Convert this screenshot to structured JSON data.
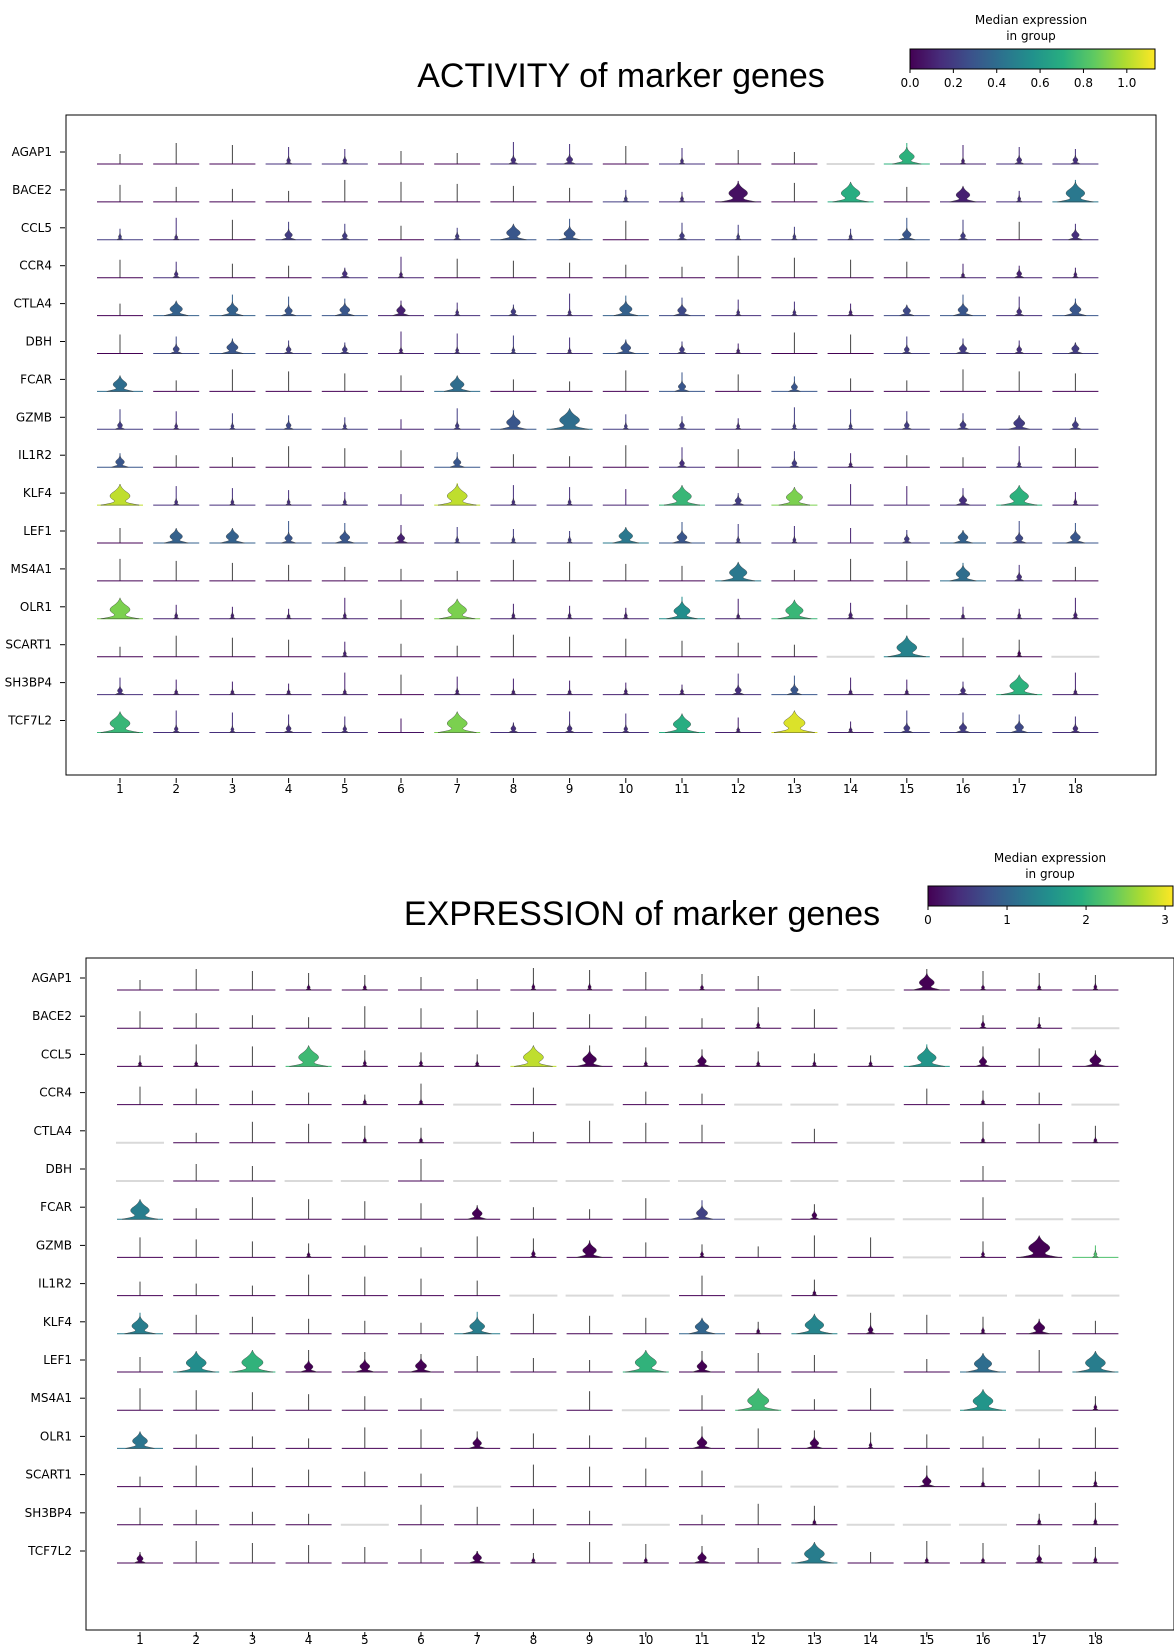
{
  "chart_data": [
    {
      "type": "violin",
      "title": "ACTIVITY of marker genes",
      "colorbar": {
        "label_line1": "Median expression",
        "label_line2": "in group",
        "min": 0.0,
        "max": 1.13,
        "ticks": [
          "0.0",
          "0.2",
          "0.4",
          "0.6",
          "0.8",
          "1.0"
        ],
        "tick_values": [
          0,
          0.2,
          0.4,
          0.6,
          0.8,
          1.0
        ]
      },
      "groups": [
        "1",
        "2",
        "3",
        "4",
        "5",
        "6",
        "7",
        "8",
        "9",
        "10",
        "11",
        "12",
        "13",
        "14",
        "15",
        "16",
        "17",
        "18"
      ],
      "genes": [
        "AGAP1",
        "BACE2",
        "CCL5",
        "CCR4",
        "CTLA4",
        "DBH",
        "FCAR",
        "GZMB",
        "IL1R2",
        "KLF4",
        "LEF1",
        "MS4A1",
        "OLR1",
        "SCART1",
        "SH3BP4",
        "TCF7L2"
      ],
      "median": [
        [
          0,
          0,
          0,
          0.15,
          0.15,
          0,
          0,
          0.15,
          0.15,
          0,
          0.15,
          0,
          0,
          0,
          0.72,
          0.1,
          0.15,
          0.15
        ],
        [
          0,
          0,
          0,
          0,
          0,
          0,
          0,
          0,
          0,
          0.2,
          0.15,
          0.05,
          0,
          0.7,
          0,
          0.1,
          0.15,
          0.45
        ],
        [
          0.2,
          0.15,
          0,
          0.2,
          0.2,
          0,
          0.2,
          0.3,
          0.3,
          0,
          0.2,
          0.2,
          0.2,
          0.2,
          0.3,
          0.2,
          0,
          0.15
        ],
        [
          0,
          0.15,
          0,
          0,
          0.15,
          0.1,
          0,
          0,
          0,
          0,
          0,
          0,
          0,
          0,
          0,
          0.1,
          0.1,
          0.1
        ],
        [
          0,
          0.35,
          0.35,
          0.3,
          0.3,
          0.1,
          0.15,
          0.2,
          0.15,
          0.35,
          0.25,
          0.15,
          0.15,
          0.1,
          0.25,
          0.3,
          0.15,
          0.3
        ],
        [
          0,
          0.25,
          0.3,
          0.2,
          0.2,
          0.1,
          0.15,
          0.2,
          0.15,
          0.3,
          0.2,
          0.1,
          0,
          0,
          0.2,
          0.2,
          0.15,
          0.2
        ],
        [
          0.4,
          0,
          0,
          0,
          0,
          0,
          0.4,
          0,
          0,
          0,
          0.3,
          0,
          0.3,
          0,
          0,
          0,
          0,
          0
        ],
        [
          0.2,
          0.15,
          0.2,
          0.25,
          0.2,
          0.1,
          0.2,
          0.3,
          0.4,
          0.2,
          0.2,
          0.15,
          0.2,
          0.2,
          0.2,
          0.2,
          0.2,
          0.2
        ],
        [
          0.3,
          0,
          0,
          0,
          0,
          0,
          0.3,
          0,
          0,
          0,
          0.15,
          0,
          0.2,
          0.1,
          0,
          0,
          0.15,
          0
        ],
        [
          1.02,
          0.15,
          0.15,
          0.15,
          0.15,
          0.1,
          1.02,
          0.15,
          0.15,
          0.1,
          0.75,
          0.2,
          0.9,
          0.1,
          0.1,
          0.15,
          0.72,
          0.1
        ],
        [
          0,
          0.35,
          0.35,
          0.3,
          0.3,
          0.1,
          0.2,
          0.2,
          0.2,
          0.45,
          0.3,
          0.2,
          0.15,
          0.1,
          0.2,
          0.35,
          0.25,
          0.3
        ],
        [
          0,
          0,
          0,
          0,
          0,
          0,
          0,
          0,
          0,
          0,
          0,
          0.45,
          0,
          0,
          0,
          0.4,
          0.15,
          0
        ],
        [
          0.9,
          0.1,
          0.1,
          0.1,
          0.1,
          0,
          0.9,
          0.1,
          0.1,
          0.1,
          0.55,
          0.1,
          0.75,
          0.1,
          0,
          0.1,
          0.1,
          0.1
        ],
        [
          0,
          0,
          0,
          0,
          0.1,
          0,
          0,
          0,
          0,
          0,
          0,
          0,
          0,
          0,
          0.5,
          0,
          0,
          0
        ],
        [
          0.15,
          0.1,
          0.1,
          0.1,
          0.1,
          0,
          0.1,
          0.1,
          0.1,
          0.1,
          0.1,
          0.15,
          0.3,
          0.1,
          0.1,
          0.15,
          0.72,
          0.1
        ],
        [
          0.75,
          0.15,
          0.15,
          0.15,
          0.15,
          0.05,
          0.9,
          0.15,
          0.15,
          0.15,
          0.7,
          0.1,
          1.07,
          0.1,
          0.2,
          0.2,
          0.25,
          0.15
        ]
      ],
      "width": [
        [
          0,
          0,
          0,
          0.15,
          0.15,
          0,
          0,
          0.2,
          0.25,
          0,
          0.1,
          0,
          0,
          -1,
          0.6,
          0.1,
          0.2,
          0.2
        ],
        [
          0,
          0,
          0,
          0,
          0,
          0,
          0,
          0,
          0,
          0.1,
          0.1,
          0.75,
          0,
          0.75,
          0,
          0.55,
          0.1,
          0.75
        ],
        [
          0.1,
          0.05,
          0,
          0.3,
          0.2,
          0,
          0.15,
          0.55,
          0.45,
          0,
          0.2,
          0.1,
          0.1,
          0.1,
          0.35,
          0.2,
          0,
          0.3
        ],
        [
          0,
          0.15,
          0,
          0,
          0.2,
          0.1,
          0,
          0,
          0,
          0,
          0,
          0,
          0,
          0,
          0,
          0.05,
          0.2,
          0.1
        ],
        [
          0,
          0.5,
          0.45,
          0.3,
          0.4,
          0.35,
          0.1,
          0.2,
          0.1,
          0.5,
          0.35,
          0.1,
          0.1,
          0.1,
          0.3,
          0.4,
          0.2,
          0.45
        ],
        [
          0,
          0.25,
          0.45,
          0.2,
          0.2,
          0.1,
          0.1,
          0.1,
          0.05,
          0.4,
          0.2,
          0.05,
          0,
          0,
          0.2,
          0.3,
          0.2,
          0.3
        ],
        [
          0.55,
          0,
          0,
          0,
          0,
          0,
          0.55,
          0,
          0,
          0,
          0.3,
          0,
          0.25,
          0,
          0,
          0,
          0,
          0
        ],
        [
          0.2,
          0.1,
          0.1,
          0.2,
          0.1,
          0,
          0.15,
          0.55,
          0.8,
          0.1,
          0.2,
          0.1,
          0.1,
          0.1,
          0.2,
          0.25,
          0.45,
          0.25
        ],
        [
          0.35,
          0,
          0,
          0,
          0,
          0,
          0.3,
          0,
          0,
          0,
          0.2,
          0,
          0.2,
          0.05,
          0,
          0,
          0.1,
          0
        ],
        [
          0.8,
          0.1,
          0.1,
          0.1,
          0.1,
          0,
          0.8,
          0.1,
          0.1,
          0,
          0.75,
          0.25,
          0.65,
          0,
          0,
          0.3,
          0.75,
          0.1
        ],
        [
          0,
          0.5,
          0.5,
          0.3,
          0.4,
          0.3,
          0.1,
          0.1,
          0.1,
          0.55,
          0.4,
          0.1,
          0.1,
          0,
          0.2,
          0.4,
          0.3,
          0.4
        ],
        [
          0,
          0,
          0,
          0,
          0,
          0,
          0,
          0,
          0,
          0,
          0,
          0.7,
          0,
          0,
          0,
          0.55,
          0.2,
          0
        ],
        [
          0.8,
          0.1,
          0.1,
          0.05,
          0.1,
          0,
          0.75,
          0.1,
          0.1,
          0.1,
          0.65,
          0.05,
          0.7,
          0.15,
          0,
          0.05,
          0.1,
          0.15
        ],
        [
          0,
          0,
          0,
          0,
          0.1,
          0,
          0,
          0,
          0,
          0,
          0,
          0,
          0,
          -1,
          0.8,
          0,
          0.1,
          -1
        ],
        [
          0.2,
          0.05,
          0.05,
          0.05,
          0.05,
          0,
          0.1,
          0.05,
          0.05,
          0.1,
          0.1,
          0.25,
          0.3,
          0.05,
          0.05,
          0.2,
          0.75,
          0.05
        ],
        [
          0.8,
          0.15,
          0.1,
          0.2,
          0.15,
          0,
          0.8,
          0.2,
          0.2,
          0.15,
          0.7,
          0.05,
          0.85,
          0.05,
          0.25,
          0.3,
          0.35,
          0.2
        ]
      ]
    },
    {
      "type": "violin",
      "title": "EXPRESSION of marker genes",
      "colorbar": {
        "label_line1": "Median expression",
        "label_line2": "in group",
        "min": 0,
        "max": 3.1,
        "ticks": [
          "0",
          "1",
          "2",
          "3"
        ],
        "tick_values": [
          0,
          1,
          2,
          3
        ]
      },
      "groups": [
        "1",
        "2",
        "3",
        "4",
        "5",
        "6",
        "7",
        "8",
        "9",
        "10",
        "11",
        "12",
        "13",
        "14",
        "15",
        "16",
        "17",
        "18"
      ],
      "genes": [
        "AGAP1",
        "BACE2",
        "CCL5",
        "CCR4",
        "CTLA4",
        "DBH",
        "FCAR",
        "GZMB",
        "IL1R2",
        "KLF4",
        "LEF1",
        "MS4A1",
        "OLR1",
        "SCART1",
        "SH3BP4",
        "TCF7L2"
      ],
      "median": [
        [
          0,
          0,
          0,
          0,
          0,
          0,
          0,
          0,
          0,
          0,
          0,
          0,
          0,
          0,
          0,
          0,
          0,
          0
        ],
        [
          0,
          0,
          0,
          0,
          0,
          0,
          0,
          0,
          0,
          0,
          0,
          0,
          0,
          0,
          0,
          0,
          0,
          0
        ],
        [
          0,
          0,
          0,
          2.1,
          0,
          0,
          0,
          2.8,
          0,
          0,
          0,
          0,
          0,
          0,
          1.6,
          0,
          0,
          0
        ],
        [
          0,
          0,
          0,
          0,
          0,
          0,
          0,
          0,
          0,
          0,
          0,
          0,
          0,
          0,
          0,
          0,
          0,
          0
        ],
        [
          0,
          0,
          0,
          0,
          0,
          0,
          0,
          0,
          0,
          0,
          0,
          0,
          0,
          0,
          0,
          0,
          0,
          0
        ],
        [
          0,
          0,
          0,
          0,
          0,
          0,
          0,
          0,
          0,
          0,
          0,
          0,
          0,
          0,
          0,
          0,
          0,
          0
        ],
        [
          1.3,
          0,
          0,
          0,
          0,
          0,
          0,
          0,
          0,
          0,
          0.6,
          0,
          0,
          0,
          0,
          0,
          0,
          0
        ],
        [
          0,
          0,
          0,
          0,
          0,
          0,
          0,
          0,
          0,
          0,
          0,
          0,
          0,
          0,
          0,
          0,
          0,
          2.2
        ],
        [
          0,
          0,
          0,
          0,
          0,
          0,
          0,
          0,
          0,
          0,
          0,
          0,
          0,
          0,
          0,
          0,
          0,
          0
        ],
        [
          1.3,
          0,
          0,
          0,
          0,
          0,
          1.3,
          0,
          0,
          0,
          1.0,
          0,
          1.4,
          0,
          0,
          0,
          0,
          0
        ],
        [
          0,
          1.5,
          2.0,
          0,
          0,
          0,
          0,
          0,
          0,
          2.0,
          0,
          0,
          0,
          0,
          0,
          1.1,
          0,
          1.3
        ],
        [
          0,
          0,
          0,
          0,
          0,
          0,
          0,
          0,
          0,
          0,
          0,
          2.1,
          0,
          0,
          0,
          1.6,
          0,
          0
        ],
        [
          1.2,
          0,
          0,
          0,
          0,
          0,
          0,
          0,
          0,
          0,
          0,
          0,
          0,
          0,
          0,
          0,
          0,
          0
        ],
        [
          0,
          0,
          0,
          0,
          0,
          0,
          0,
          0,
          0,
          0,
          0,
          0,
          0,
          0,
          0,
          0,
          0,
          0
        ],
        [
          0,
          0,
          0,
          0,
          0,
          0,
          0,
          0,
          0,
          0,
          0,
          0,
          0,
          0,
          0,
          0,
          0,
          0
        ],
        [
          0,
          0,
          0,
          0,
          0,
          0,
          0,
          0,
          0,
          0,
          0,
          0,
          1.3,
          0,
          0,
          0,
          0,
          0
        ]
      ],
      "width": [
        [
          0,
          0,
          0,
          0.05,
          0.05,
          0,
          0,
          0.1,
          0.1,
          0,
          0.05,
          0,
          -1,
          -1,
          0.6,
          0.05,
          0.05,
          0.1
        ],
        [
          0,
          0,
          0,
          0,
          0,
          0,
          0,
          0,
          0,
          0,
          0,
          0.1,
          0,
          -1,
          -1,
          0.15,
          0.05,
          -1
        ],
        [
          0.05,
          0.05,
          0,
          0.8,
          0.1,
          0.1,
          0.05,
          0.8,
          0.55,
          0.05,
          0.35,
          0.05,
          0.05,
          0.05,
          0.75,
          0.3,
          0,
          0.45
        ],
        [
          0,
          0,
          0,
          0,
          0.05,
          0.05,
          -1,
          0,
          -1,
          0,
          0,
          -1,
          -1,
          -1,
          0,
          0.05,
          0,
          -1
        ],
        [
          -1,
          0,
          0,
          0,
          0.05,
          0.05,
          -1,
          0,
          0,
          0,
          0,
          -1,
          0,
          -1,
          -1,
          0.05,
          0,
          0.05
        ],
        [
          -1,
          0,
          0,
          -1,
          -1,
          0,
          -1,
          -1,
          -1,
          -1,
          -1,
          -1,
          -1,
          -1,
          -1,
          0,
          -1,
          -1
        ],
        [
          0.75,
          0,
          0,
          0,
          0,
          0,
          0.4,
          0,
          0,
          0,
          0.45,
          -1,
          0.2,
          -1,
          -1,
          0,
          -1,
          -1
        ],
        [
          0,
          0,
          0,
          0.05,
          0,
          0,
          0,
          0.15,
          0.55,
          0,
          0.1,
          0,
          0,
          0,
          -1,
          0.1,
          0.85,
          0.1
        ],
        [
          0,
          0,
          0,
          0,
          0,
          0,
          0,
          -1,
          -1,
          -1,
          0,
          -1,
          0.05,
          -1,
          -1,
          -1,
          -1,
          -1
        ],
        [
          0.65,
          0,
          0,
          0,
          0,
          0,
          0.6,
          0,
          0,
          0,
          0.55,
          0.05,
          0.75,
          0.2,
          0,
          0.1,
          0.45,
          0
        ],
        [
          0,
          0.8,
          0.85,
          0.35,
          0.4,
          0.45,
          0,
          0,
          0,
          0.85,
          0.4,
          0,
          0,
          -1,
          0,
          0.7,
          0,
          0.8
        ],
        [
          0,
          0,
          0,
          0,
          0,
          0,
          -1,
          -1,
          0,
          -1,
          0,
          0.85,
          0,
          0,
          -1,
          0.8,
          -1,
          0.1
        ],
        [
          0.6,
          0,
          0,
          0,
          0,
          0,
          0.35,
          0,
          0,
          0,
          0.4,
          0,
          0.35,
          0.1,
          0,
          0,
          0,
          0
        ],
        [
          0,
          0,
          0,
          0,
          0,
          0,
          -1,
          0,
          0,
          0,
          0,
          -1,
          -1,
          -1,
          0.35,
          0.05,
          0,
          0.1
        ],
        [
          0,
          0,
          0,
          0,
          -1,
          0,
          0,
          0,
          0,
          -1,
          0,
          0,
          0.05,
          -1,
          -1,
          -1,
          0.1,
          0.1
        ],
        [
          0.25,
          0,
          0,
          0,
          0,
          0,
          0.35,
          0.05,
          0,
          0.05,
          0.35,
          0,
          0.8,
          0,
          0.05,
          0.05,
          0.2,
          0.1
        ]
      ]
    }
  ]
}
